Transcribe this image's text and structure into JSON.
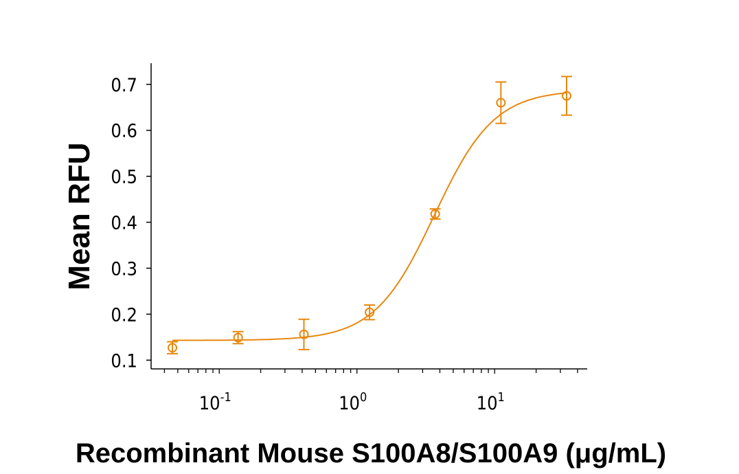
{
  "chart_data": {
    "type": "scatter",
    "title": "",
    "xlabel": "Recombinant Mouse S100A8/S100A9 (μg/mL)",
    "ylabel": "Mean RFU",
    "xscale": "log",
    "xlim": [
      0.032,
      47
    ],
    "ylim": [
      0.081,
      0.746
    ],
    "yticks": [
      0.1,
      0.2,
      0.3,
      0.4,
      0.5,
      0.6,
      0.7
    ],
    "ytick_labels": [
      "0.1",
      "0.2",
      "0.3",
      "0.4",
      "0.5",
      "0.6",
      "0.7"
    ],
    "xticks": [
      0.1,
      1,
      10
    ],
    "xtick_labels": [
      {
        "base": "10",
        "exp": "-1"
      },
      {
        "base": "10",
        "exp": "0"
      },
      {
        "base": "10",
        "exp": "1"
      }
    ],
    "grid": false,
    "color": "#E8870E",
    "series": [
      {
        "name": "Mean RFU",
        "x": [
          0.0457,
          0.137,
          0.412,
          1.235,
          3.7,
          11.1,
          33.3
        ],
        "y": [
          0.127,
          0.149,
          0.156,
          0.204,
          0.418,
          0.66,
          0.675
        ],
        "err": [
          0.013,
          0.013,
          0.033,
          0.016,
          0.011,
          0.045,
          0.042
        ]
      }
    ],
    "fit": {
      "model": "4PL",
      "bottom": 0.143,
      "top": 0.688,
      "ec50": 3.65,
      "hill": 2.0
    }
  }
}
